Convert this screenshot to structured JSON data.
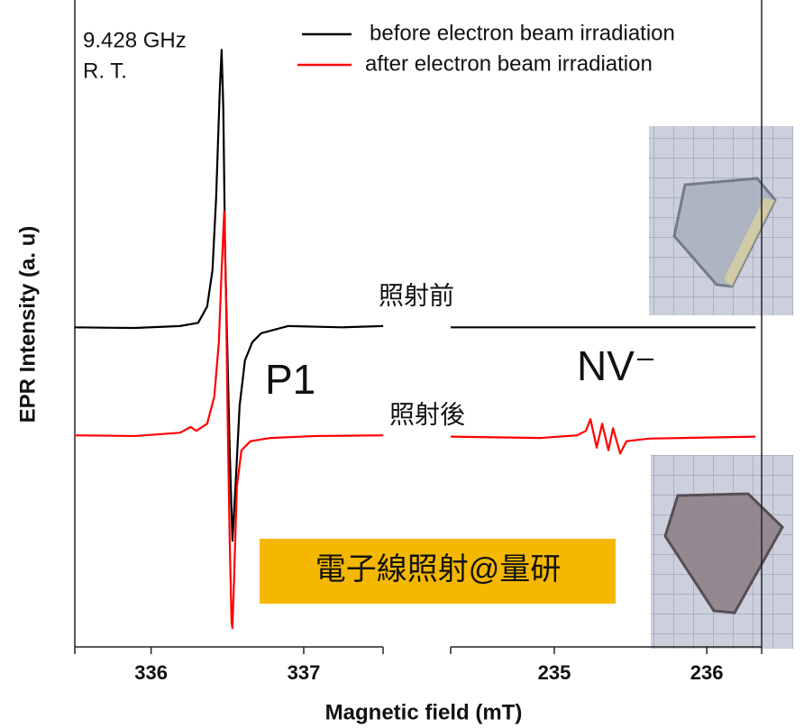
{
  "chart_data": {
    "type": "line",
    "x_label": "Magnetic field (mT)",
    "y_label": "EPR Intensity (a. u)",
    "ylim": [
      0,
      100
    ],
    "annotations": [
      "9.428 GHz",
      "R. T.",
      "照射前",
      "照射後",
      "P1",
      "NV⁻",
      "電子線照射@量研"
    ],
    "legend_position": "upper right",
    "panels": [
      {
        "xlim": [
          335.5,
          337.52
        ],
        "xticks": [
          336,
          337
        ],
        "series": [
          {
            "name": "before electron beam irradiation",
            "color": "#000000",
            "x": [
              335.497,
              335.893,
              336.189,
              336.308,
              336.367,
              336.402,
              336.426,
              336.45,
              336.462,
              336.473,
              336.485,
              336.497,
              336.515,
              336.533,
              336.556,
              336.58,
              336.615,
              336.663,
              336.722,
              336.899,
              337.254,
              337.521
            ],
            "values": [
              49.4,
              49.3,
              49.6,
              50.1,
              52.6,
              58.2,
              69.4,
              86.1,
              92.3,
              83.3,
              61.0,
              48.5,
              30.4,
              16.4,
              26.2,
              37.3,
              44.3,
              47.1,
              48.5,
              49.6,
              49.4,
              49.6
            ]
          },
          {
            "name": "after electron beam irradiation",
            "color": "#ff0000",
            "x": [
              335.497,
              335.893,
              336.189,
              336.26,
              336.296,
              336.367,
              336.414,
              336.444,
              336.462,
              336.479,
              336.491,
              336.503,
              336.515,
              336.527,
              336.533,
              336.544,
              336.562,
              336.592,
              336.651,
              336.781,
              337.077,
              337.521
            ],
            "values": [
              32.7,
              32.6,
              33.1,
              34.0,
              33.4,
              34.5,
              38.7,
              47.1,
              58.2,
              67.3,
              54.0,
              33.1,
              16.4,
              3.9,
              2.9,
              10.9,
              24.8,
              30.4,
              31.8,
              32.3,
              32.6,
              32.7
            ]
          }
        ]
      },
      {
        "xlim": [
          234.32,
          236.36
        ],
        "xticks": [
          235,
          236
        ],
        "series": [
          {
            "color": "#000000",
            "x": [
              234.32,
              236.32
            ],
            "values": [
              49.4,
              49.4
            ]
          },
          {
            "color": "#ff0000",
            "x": [
              234.32,
              234.911,
              235.148,
              235.207,
              235.237,
              235.278,
              235.314,
              235.355,
              235.385,
              235.432,
              235.473,
              235.621,
              236.32
            ],
            "values": [
              32.5,
              32.3,
              32.7,
              33.4,
              35.2,
              30.8,
              34.5,
              30.4,
              33.8,
              29.9,
              31.8,
              32.2,
              32.5
            ]
          }
        ]
      }
    ]
  }
}
